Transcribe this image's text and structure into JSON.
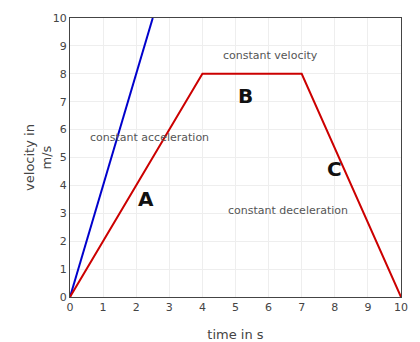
{
  "chart_data": {
    "type": "line",
    "xlabel": "time in s",
    "ylabel": "velocity in\nm/s",
    "xlim": [
      0,
      10
    ],
    "ylim": [
      0,
      10
    ],
    "xticks": [
      0,
      1,
      2,
      3,
      4,
      5,
      6,
      7,
      8,
      9,
      10
    ],
    "yticks": [
      0,
      1,
      2,
      3,
      4,
      5,
      6,
      7,
      8,
      9,
      10
    ],
    "grid": true,
    "series": [
      {
        "color": "#0000cc",
        "x": [
          0,
          2.5
        ],
        "values": [
          0,
          10
        ]
      },
      {
        "color": "#cc0000",
        "x": [
          0,
          4,
          7,
          10
        ],
        "values": [
          0,
          8,
          8,
          0
        ]
      }
    ],
    "annotations": [
      {
        "text": "constant acceleration",
        "x": 0.55,
        "y": 5.7,
        "color": "#555555"
      },
      {
        "text": "constant velocity",
        "x": 4.55,
        "y": 8.65,
        "color": "#555555"
      },
      {
        "text": "constant deceleration",
        "x": 4.7,
        "y": 3.1,
        "color": "#555555"
      },
      {
        "text": "A",
        "x": 2.3,
        "y": 3.5,
        "color": "#111111"
      },
      {
        "text": "B",
        "x": 5.3,
        "y": 7.2,
        "color": "#111111"
      },
      {
        "text": "C",
        "x": 8.0,
        "y": 4.6,
        "color": "#111111"
      }
    ]
  }
}
